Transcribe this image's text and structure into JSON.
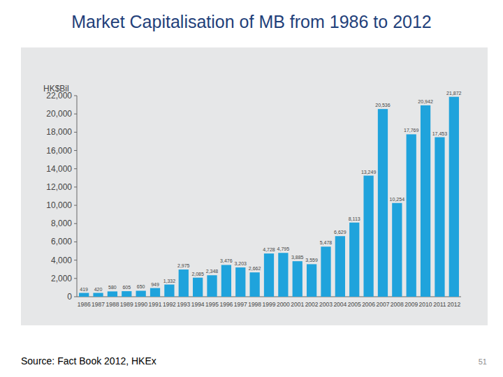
{
  "chart_data": {
    "type": "bar",
    "title": "Market Capitalisation of MB from 1986 to 2012",
    "ylabel": "HK$Bil",
    "categories": [
      "1986",
      "1987",
      "1988",
      "1989",
      "1990",
      "1991",
      "1992",
      "1993",
      "1994",
      "1995",
      "1996",
      "1997",
      "1998",
      "1999",
      "2000",
      "2001",
      "2002",
      "2003",
      "2004",
      "2005",
      "2006",
      "2007",
      "2008",
      "2009",
      "2010",
      "2011",
      "2012"
    ],
    "values": [
      419,
      420,
      580,
      605,
      650,
      949,
      1332,
      2975,
      2085,
      2348,
      3476,
      3203,
      2662,
      4728,
      4795,
      3885,
      3559,
      5478,
      6629,
      8113,
      13249,
      20536,
      10254,
      17769,
      20942,
      17453,
      21872
    ],
    "value_labels": [
      "419",
      "420",
      "580",
      "605",
      "650",
      "949",
      "1,332",
      "2,975",
      "2,085",
      "2,348",
      "3,476",
      "3,203",
      "2,662",
      "4,728",
      "4,795",
      "3,885",
      "3,559",
      "5,478",
      "6,629",
      "8,113",
      "13,249",
      "20,536",
      "10,254",
      "17,769",
      "20,942",
      "17,453",
      "21,872"
    ],
    "color": "#1fa3dc",
    "ylim": [
      0,
      22000
    ],
    "yticks": [
      0,
      {
        "value": 2000,
        "label": "2,000"
      },
      {
        "value": 4000,
        "label": "4,000"
      },
      {
        "value": 6000,
        "label": "6,000"
      },
      {
        "value": 8000,
        "label": "8,000"
      },
      {
        "value": 10000,
        "label": "10,000"
      },
      {
        "value": 12000,
        "label": "12,000"
      },
      {
        "value": 14000,
        "label": "14,000"
      },
      {
        "value": 16000,
        "label": "16,000"
      },
      {
        "value": 18000,
        "label": "18,000"
      },
      {
        "value": 20000,
        "label": "20,000"
      },
      {
        "value": 22000,
        "label": "22,000"
      }
    ],
    "grid": false,
    "data_labels": true
  },
  "footer": {
    "source": "Source: Fact Book 2012, HKEx",
    "page": "51"
  }
}
